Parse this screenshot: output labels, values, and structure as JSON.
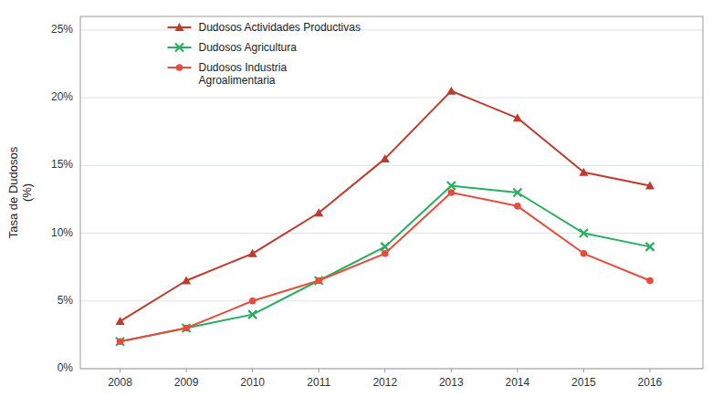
{
  "chart_data": {
    "type": "line",
    "x": [
      2008,
      2009,
      2010,
      2011,
      2012,
      2013,
      2014,
      2015,
      2016
    ],
    "xlim": [
      2007.4,
      2016.8
    ],
    "xticks": [
      2008,
      2009,
      2010,
      2011,
      2012,
      2013,
      2014,
      2015,
      2016
    ],
    "ylabel": "Tasa de Dudosos\n(%)",
    "ylim": [
      0,
      26
    ],
    "yticks": [
      {
        "value": 0,
        "label": "0%"
      },
      {
        "value": 5,
        "label": "5%"
      },
      {
        "value": 10,
        "label": "10%"
      },
      {
        "value": 15,
        "label": "15%"
      },
      {
        "value": 20,
        "label": "20%"
      },
      {
        "value": 25,
        "label": "25%"
      }
    ],
    "grid": true,
    "legend": "upper left",
    "series": [
      {
        "name": "Dudosos Actividades Productivas",
        "color": "#C0392B",
        "marker": "triangle",
        "line_style": "solid",
        "values": [
          3.5,
          6.5,
          8.5,
          11.5,
          15.5,
          20.5,
          18.5,
          14.5,
          13.5
        ]
      },
      {
        "name": "Dudosos Agricultura",
        "color": "#27AE60",
        "marker": "x",
        "line_style": "solid",
        "values": [
          2.0,
          3.0,
          4.0,
          6.5,
          9.0,
          13.5,
          13.0,
          10.0,
          9.0
        ]
      },
      {
        "name": "Dudosos Industria\nAgroalimentaria",
        "color": "#E74C3C",
        "marker": "circle",
        "line_style": "solid",
        "values": [
          2.0,
          3.0,
          5.0,
          6.5,
          8.5,
          13.0,
          12.0,
          8.5,
          6.5
        ]
      }
    ]
  }
}
